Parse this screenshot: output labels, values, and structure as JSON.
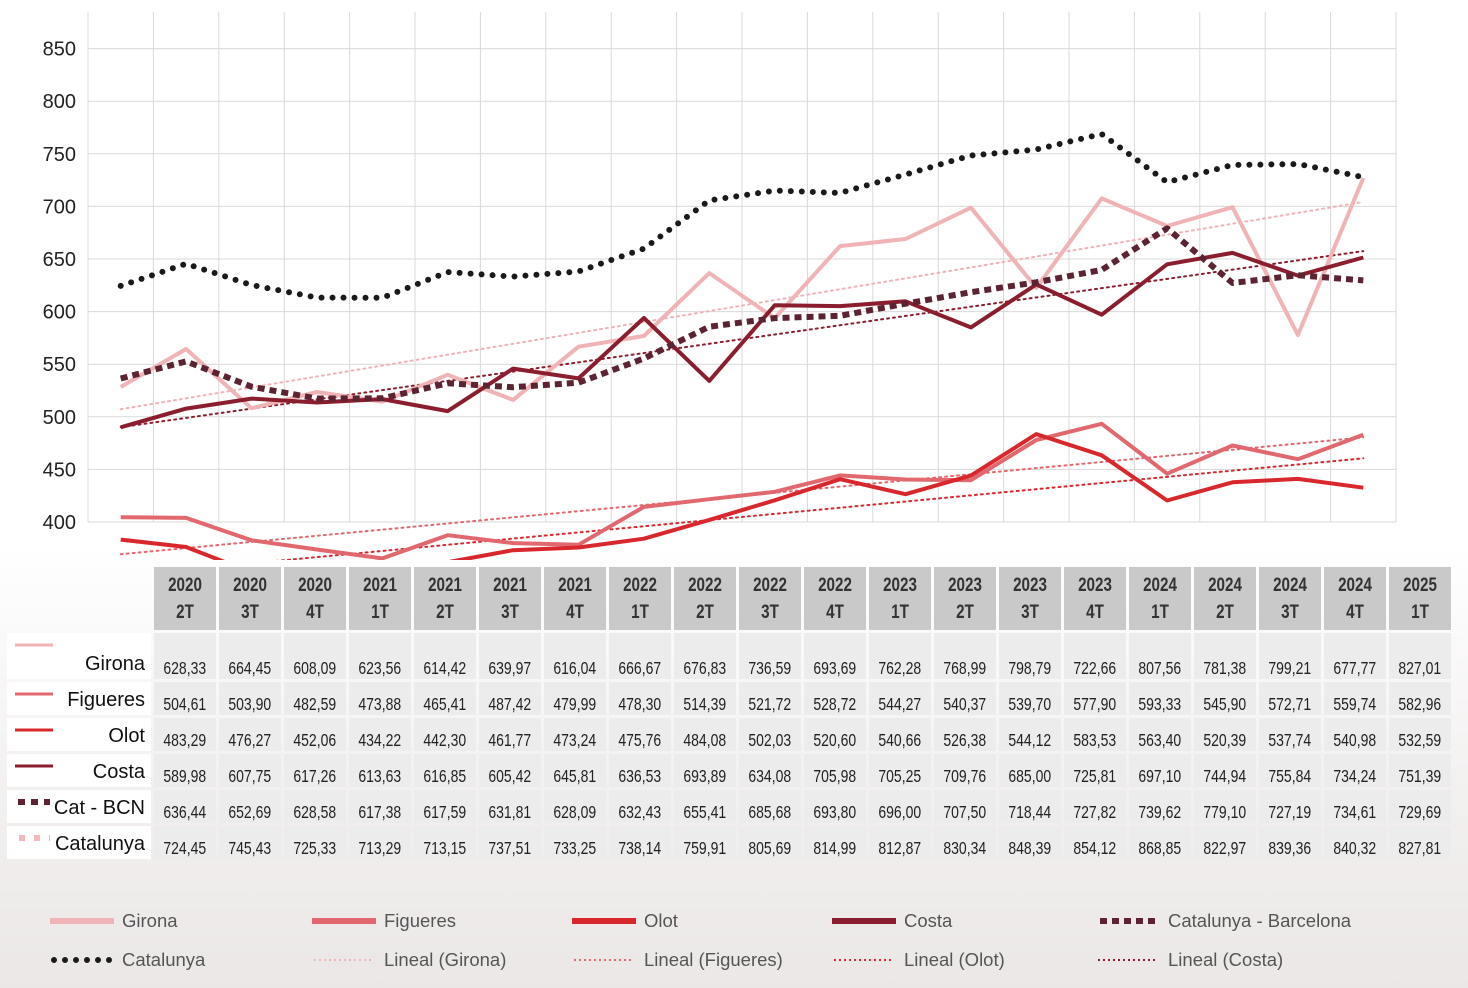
{
  "chart_data": {
    "type": "line",
    "title": "",
    "xlabel": "",
    "ylabel": "",
    "ylim": [
      400,
      870
    ],
    "yticks": [
      400,
      450,
      500,
      550,
      600,
      650,
      700,
      750,
      800,
      850
    ],
    "grid": true,
    "legend_position": "bottom",
    "categories": [
      {
        "year": "2020",
        "quarter": "2T"
      },
      {
        "year": "2020",
        "quarter": "3T"
      },
      {
        "year": "2020",
        "quarter": "4T"
      },
      {
        "year": "2021",
        "quarter": "1T"
      },
      {
        "year": "2021",
        "quarter": "2T"
      },
      {
        "year": "2021",
        "quarter": "3T"
      },
      {
        "year": "2021",
        "quarter": "4T"
      },
      {
        "year": "2022",
        "quarter": "1T"
      },
      {
        "year": "2022",
        "quarter": "2T"
      },
      {
        "year": "2022",
        "quarter": "3T"
      },
      {
        "year": "2022",
        "quarter": "4T"
      },
      {
        "year": "2023",
        "quarter": "1T"
      },
      {
        "year": "2023",
        "quarter": "2T"
      },
      {
        "year": "2023",
        "quarter": "3T"
      },
      {
        "year": "2023",
        "quarter": "4T"
      },
      {
        "year": "2024",
        "quarter": "1T"
      },
      {
        "year": "2024",
        "quarter": "2T"
      },
      {
        "year": "2024",
        "quarter": "3T"
      },
      {
        "year": "2024",
        "quarter": "4T"
      },
      {
        "year": "2025",
        "quarter": "1T"
      }
    ],
    "series": [
      {
        "key": "girona",
        "row_label": "Girona",
        "legend": "Girona",
        "color": "#f0b3b6",
        "style": "solid",
        "values": [
          628.33,
          664.45,
          608.09,
          623.56,
          614.42,
          639.97,
          616.04,
          666.67,
          676.83,
          736.59,
          693.69,
          762.28,
          768.99,
          798.79,
          722.66,
          807.56,
          781.38,
          799.21,
          677.77,
          827.01
        ],
        "value_labels": [
          "628,33",
          "664,45",
          "608,09",
          "623,56",
          "614,42",
          "639,97",
          "616,04",
          "666,67",
          "676,83",
          "736,59",
          "693,69",
          "762,28",
          "768,99",
          "798,79",
          "722,66",
          "807,56",
          "781,38",
          "799,21",
          "677,77",
          "827,01"
        ]
      },
      {
        "key": "figueres",
        "row_label": "Figueres",
        "legend": "Figueres",
        "color": "#e0686e",
        "style": "solid",
        "values": [
          504.61,
          503.9,
          482.59,
          473.88,
          465.41,
          487.42,
          479.99,
          478.3,
          514.39,
          521.72,
          528.72,
          544.27,
          540.37,
          539.7,
          577.9,
          593.33,
          545.9,
          572.71,
          559.74,
          582.96
        ],
        "value_labels": [
          "504,61",
          "503,90",
          "482,59",
          "473,88",
          "465,41",
          "487,42",
          "479,99",
          "478,30",
          "514,39",
          "521,72",
          "528,72",
          "544,27",
          "540,37",
          "539,70",
          "577,90",
          "593,33",
          "545,90",
          "572,71",
          "559,74",
          "582,96"
        ]
      },
      {
        "key": "olot",
        "row_label": "Olot",
        "legend": "Olot",
        "color": "#d8282e",
        "style": "solid",
        "values": [
          483.29,
          476.27,
          452.06,
          434.22,
          442.3,
          461.77,
          473.24,
          475.76,
          484.08,
          502.03,
          520.6,
          540.66,
          526.38,
          544.12,
          583.53,
          563.4,
          520.39,
          537.74,
          540.98,
          532.59
        ],
        "value_labels": [
          "483,29",
          "476,27",
          "452,06",
          "434,22",
          "442,30",
          "461,77",
          "473,24",
          "475,76",
          "484,08",
          "502,03",
          "520,60",
          "540,66",
          "526,38",
          "544,12",
          "583,53",
          "563,40",
          "520,39",
          "537,74",
          "540,98",
          "532,59"
        ]
      },
      {
        "key": "costa",
        "row_label": "Costa",
        "legend": "Costa",
        "color": "#8b1e2e",
        "style": "solid",
        "values": [
          589.98,
          607.75,
          617.26,
          613.63,
          616.85,
          605.42,
          645.81,
          636.53,
          693.89,
          634.08,
          705.98,
          705.25,
          709.76,
          685.0,
          725.81,
          697.1,
          744.94,
          755.84,
          734.24,
          751.39
        ],
        "value_labels": [
          "589,98",
          "607,75",
          "617,26",
          "613,63",
          "616,85",
          "605,42",
          "645,81",
          "636,53",
          "693,89",
          "634,08",
          "705,98",
          "705,25",
          "709,76",
          "685,00",
          "725,81",
          "697,10",
          "744,94",
          "755,84",
          "734,24",
          "751,39"
        ]
      },
      {
        "key": "catbcn",
        "row_label": "Cat - BCN",
        "legend": "Catalunya - Barcelona",
        "color": "#5c2433",
        "style": "dashed",
        "values": [
          636.44,
          652.69,
          628.58,
          617.38,
          617.59,
          631.81,
          628.09,
          632.43,
          655.41,
          685.68,
          693.8,
          696.0,
          707.5,
          718.44,
          727.82,
          739.62,
          779.1,
          727.19,
          734.61,
          729.69
        ],
        "value_labels": [
          "636,44",
          "652,69",
          "628,58",
          "617,38",
          "617,59",
          "631,81",
          "628,09",
          "632,43",
          "655,41",
          "685,68",
          "693,80",
          "696,00",
          "707,50",
          "718,44",
          "727,82",
          "739,62",
          "779,10",
          "727,19",
          "734,61",
          "729,69"
        ]
      },
      {
        "key": "catalunya",
        "row_label": "Catalunya",
        "legend": "Catalunya",
        "color": "#1a1a1a",
        "row_icon_color": "#f2b8bb",
        "style": "dotted",
        "values": [
          724.45,
          745.43,
          725.33,
          713.29,
          713.15,
          737.51,
          733.25,
          738.14,
          759.91,
          805.69,
          814.99,
          812.87,
          830.34,
          848.39,
          854.12,
          868.85,
          822.97,
          839.36,
          840.32,
          827.81
        ],
        "value_labels": [
          "724,45",
          "745,43",
          "725,33",
          "713,29",
          "713,15",
          "737,51",
          "733,25",
          "738,14",
          "759,91",
          "805,69",
          "814,99",
          "812,87",
          "830,34",
          "848,39",
          "854,12",
          "868,85",
          "822,97",
          "839,36",
          "840,32",
          "827,81"
        ]
      }
    ],
    "trendlines": [
      {
        "legend": "Lineal (Girona)",
        "of": "girona",
        "color": "#f0b3b6"
      },
      {
        "legend": "Lineal (Figueres)",
        "of": "figueres",
        "color": "#e0686e"
      },
      {
        "legend": "Lineal (Olot)",
        "of": "olot",
        "color": "#d8282e"
      },
      {
        "legend": "Lineal (Costa)",
        "of": "costa",
        "color": "#8b1e2e"
      }
    ]
  }
}
